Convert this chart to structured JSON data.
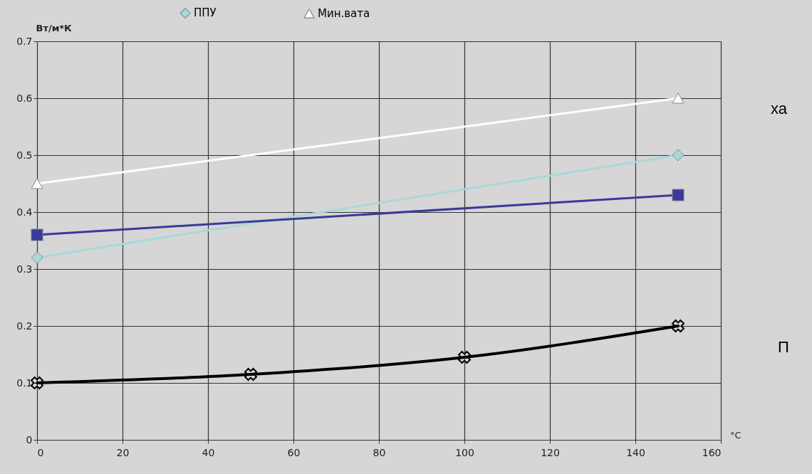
{
  "chart_data": {
    "type": "line",
    "xlabel": "°C",
    "ylabel": "Вт/м*К",
    "xlim": [
      0,
      160
    ],
    "xticks": [
      0,
      20,
      40,
      60,
      80,
      100,
      120,
      140,
      160
    ],
    "ylim": [
      0,
      0.7
    ],
    "yticks": [
      0,
      0.1,
      0.2,
      0.3,
      0.4,
      0.5,
      0.6,
      0.7
    ],
    "grid": true,
    "legend": "top",
    "annotations": [
      "ха",
      "П"
    ],
    "series": [
      {
        "name": "ППУ",
        "color": "#a8d8d8",
        "marker": "diamond",
        "x": [
          0,
          150
        ],
        "values": [
          0.32,
          0.5
        ]
      },
      {
        "color": "#3a3a9a",
        "marker": "square",
        "x": [
          0,
          150
        ],
        "values": [
          0.36,
          0.43
        ]
      },
      {
        "name": "Мин.вата",
        "color": "#ffffff",
        "marker": "triangle",
        "x": [
          0,
          150
        ],
        "values": [
          0.45,
          0.6
        ]
      },
      {
        "color": "#000000",
        "marker": "cross",
        "x": [
          0,
          50,
          100,
          150
        ],
        "values": [
          0.1,
          0.115,
          0.145,
          0.2
        ]
      }
    ]
  }
}
